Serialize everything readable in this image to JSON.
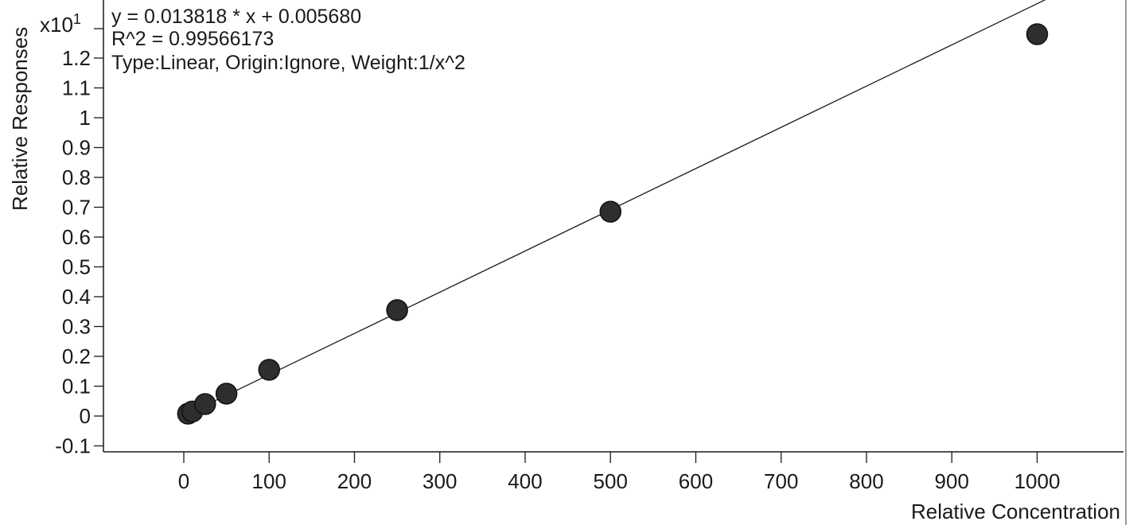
{
  "chart_data": {
    "type": "scatter",
    "xlabel": "Relative Concentration",
    "ylabel": "Relative Responses",
    "y_multiplier_label": "x10",
    "y_multiplier_exponent": "1",
    "xlim": [
      -95,
      1095
    ],
    "ylim": [
      -0.14,
      1.35
    ],
    "x_ticks": [
      0,
      100,
      200,
      300,
      400,
      500,
      600,
      700,
      800,
      900,
      1000
    ],
    "y_ticks": [
      -0.1,
      0,
      0.1,
      0.2,
      0.3,
      0.4,
      0.5,
      0.6,
      0.7,
      0.8,
      0.9,
      1,
      1.1,
      1.2
    ],
    "annotations": [
      "y = 0.013818 * x  + 0.005680",
      "R^2 = 0.99566173",
      "Type:Linear, Origin:Ignore, Weight:1/x^2"
    ],
    "fit_line": {
      "slope": 0.0013818,
      "intercept": 0.000568
    },
    "series": [
      {
        "points": [
          {
            "x": 5,
            "y": 0.008
          },
          {
            "x": 10,
            "y": 0.015
          },
          {
            "x": 25,
            "y": 0.04
          },
          {
            "x": 50,
            "y": 0.075
          },
          {
            "x": 100,
            "y": 0.155
          },
          {
            "x": 250,
            "y": 0.355
          },
          {
            "x": 500,
            "y": 0.685
          },
          {
            "x": 1000,
            "y": 1.28
          }
        ]
      }
    ],
    "grid": false,
    "colors": {
      "marker": "#2e2e2e",
      "line": "#1a1a1a",
      "axis": "#1a1a1a"
    }
  }
}
